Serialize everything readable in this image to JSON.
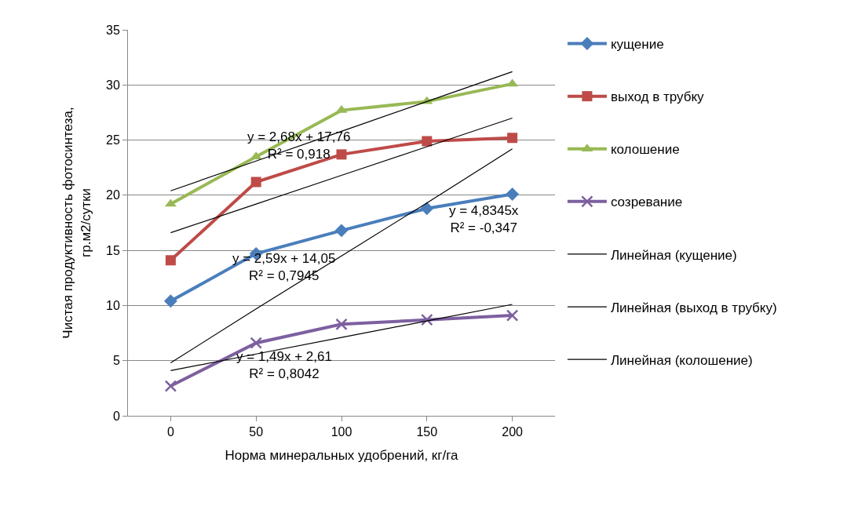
{
  "chart_data": {
    "type": "line",
    "xlabel": "Норма минеральных удобрений, кг/га",
    "ylabel": "Чистая продуктивность фотосинтеза,\nгр.м2/сутки",
    "categories": [
      "0",
      "50",
      "100",
      "150",
      "200"
    ],
    "ylim": [
      0,
      35
    ],
    "yticks": [
      0,
      5,
      10,
      15,
      20,
      25,
      30,
      35
    ],
    "grid": "y",
    "legend": "right",
    "series": [
      {
        "name": "кущение",
        "color": "#4a7ebb",
        "marker": "diamond",
        "values": [
          10.4,
          14.7,
          16.8,
          18.8,
          20.1
        ]
      },
      {
        "name": "выход в трубку",
        "color": "#be4b48",
        "marker": "square",
        "values": [
          14.1,
          21.2,
          23.7,
          24.9,
          25.2
        ]
      },
      {
        "name": "колошение",
        "color": "#98b954",
        "marker": "triangle",
        "values": [
          19.2,
          23.5,
          27.7,
          28.5,
          30.1
        ]
      },
      {
        "name": "созревание",
        "color": "#7d60a0",
        "marker": "cross",
        "values": [
          2.7,
          6.6,
          8.3,
          8.7,
          9.1
        ]
      },
      {
        "name": "Линейная (кущение)",
        "color": "#000000",
        "marker": "none",
        "values": [
          4.8,
          9.7,
          14.5,
          19.3,
          24.2
        ]
      },
      {
        "name": "Линейная (выход в трубку)",
        "color": "#000000",
        "marker": "none",
        "values": [
          16.6,
          19.2,
          21.8,
          24.4,
          27.0
        ]
      },
      {
        "name": "Линейная (колошение)",
        "color": "#000000",
        "marker": "none",
        "values": [
          20.4,
          23.1,
          25.8,
          28.5,
          31.2
        ]
      },
      {
        "color": "#000000",
        "marker": "none",
        "values": [
          4.1,
          5.6,
          7.1,
          8.6,
          10.1
        ]
      }
    ],
    "annotations": [
      "y = 2,68x + 17,76\nR² = 0,918",
      "y = 4,8345x\nR² = -0,347",
      "y = 2,59x + 14,05\nR² = 0,7945",
      "y = 1,49x + 2,61\nR² = 0,8042"
    ]
  }
}
